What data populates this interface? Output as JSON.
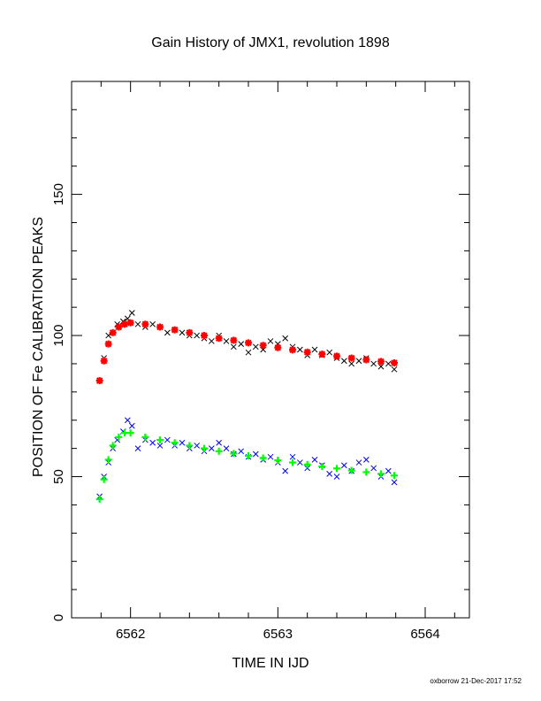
{
  "chart_data": {
    "type": "scatter",
    "title": "Gain History of JMX1, revolution 1898",
    "xlabel": "TIME IN IJD",
    "ylabel": "POSITION OF Fe CALIBRATION PEAKS",
    "xlim": [
      6561.6,
      6564.3
    ],
    "ylim": [
      0,
      190
    ],
    "x_ticks": [
      6562,
      6563,
      6564
    ],
    "y_ticks": [
      0,
      50,
      100,
      150
    ],
    "grid": false,
    "footer": "oxborrow 21-Dec-2017 17:52",
    "colors": {
      "upper_points": "#000000",
      "upper_fit": "#ff0000",
      "lower_points": "#0000ff",
      "lower_fit": "#00ff00"
    },
    "series": [
      {
        "marker": "x",
        "color": "#000000",
        "x": [
          6561.79,
          6561.82,
          6561.85,
          6561.88,
          6561.91,
          6561.95,
          6561.98,
          6562.01,
          6562.05,
          6562.1,
          6562.15,
          6562.2,
          6562.25,
          6562.3,
          6562.35,
          6562.4,
          6562.45,
          6562.5,
          6562.55,
          6562.6,
          6562.65,
          6562.7,
          6562.75,
          6562.8,
          6562.85,
          6562.9,
          6562.95,
          6563.0,
          6563.05,
          6563.1,
          6563.15,
          6563.2,
          6563.25,
          6563.3,
          6563.35,
          6563.4,
          6563.45,
          6563.5,
          6563.55,
          6563.6,
          6563.65,
          6563.7,
          6563.75,
          6563.79
        ],
        "y": [
          84,
          92,
          100,
          101,
          104,
          105,
          106,
          108,
          104,
          103,
          104,
          103,
          101,
          102,
          101,
          100,
          100,
          99,
          98,
          100,
          98,
          96,
          97,
          94,
          96,
          95,
          98,
          97,
          99,
          96,
          95,
          93,
          95,
          93,
          94,
          92,
          91,
          90,
          91,
          92,
          90,
          89,
          90,
          88
        ]
      },
      {
        "marker": "*",
        "color": "#ff0000",
        "x": [
          6561.79,
          6561.82,
          6561.85,
          6561.88,
          6561.92,
          6561.96,
          6562.0,
          6562.1,
          6562.2,
          6562.3,
          6562.4,
          6562.5,
          6562.6,
          6562.7,
          6562.8,
          6562.9,
          6563.0,
          6563.1,
          6563.2,
          6563.3,
          6563.4,
          6563.5,
          6563.6,
          6563.7,
          6563.79
        ],
        "y": [
          84,
          91,
          97,
          101,
          103,
          104,
          104.5,
          104,
          103,
          102,
          101,
          100,
          99,
          98.3,
          97.4,
          96.5,
          95.7,
          94.9,
          94.1,
          93.4,
          92.7,
          92,
          91.4,
          90.8,
          90.3
        ]
      },
      {
        "marker": "x",
        "color": "#0000ff",
        "x": [
          6561.79,
          6561.82,
          6561.85,
          6561.88,
          6561.91,
          6561.95,
          6561.98,
          6562.01,
          6562.05,
          6562.1,
          6562.15,
          6562.2,
          6562.25,
          6562.3,
          6562.35,
          6562.4,
          6562.45,
          6562.5,
          6562.55,
          6562.6,
          6562.65,
          6562.7,
          6562.75,
          6562.8,
          6562.85,
          6562.9,
          6562.95,
          6563.0,
          6563.05,
          6563.1,
          6563.15,
          6563.2,
          6563.25,
          6563.3,
          6563.35,
          6563.4,
          6563.45,
          6563.5,
          6563.55,
          6563.6,
          6563.65,
          6563.7,
          6563.75,
          6563.79
        ],
        "y": [
          43,
          50,
          55,
          60,
          63,
          66,
          70,
          68,
          60,
          63,
          62,
          61,
          63,
          61,
          62,
          60,
          61,
          59,
          60,
          62,
          60,
          58,
          59,
          57,
          58,
          56,
          57,
          55,
          52,
          57,
          55,
          53,
          56,
          54,
          51,
          50,
          54,
          52,
          55,
          56,
          53,
          50,
          52,
          48
        ]
      },
      {
        "marker": "+",
        "color": "#00ff00",
        "x": [
          6561.79,
          6561.82,
          6561.85,
          6561.88,
          6561.92,
          6561.96,
          6562.0,
          6562.1,
          6562.2,
          6562.3,
          6562.4,
          6562.5,
          6562.6,
          6562.7,
          6562.8,
          6562.9,
          6563.0,
          6563.1,
          6563.2,
          6563.3,
          6563.4,
          6563.5,
          6563.6,
          6563.7,
          6563.79
        ],
        "y": [
          42,
          49,
          56,
          61,
          64,
          65.5,
          65.5,
          64,
          63,
          62,
          61,
          60,
          59,
          58.2,
          57.4,
          56.6,
          55.8,
          55,
          54.3,
          53.6,
          52.9,
          52.2,
          51.6,
          51,
          50.4
        ]
      }
    ]
  }
}
